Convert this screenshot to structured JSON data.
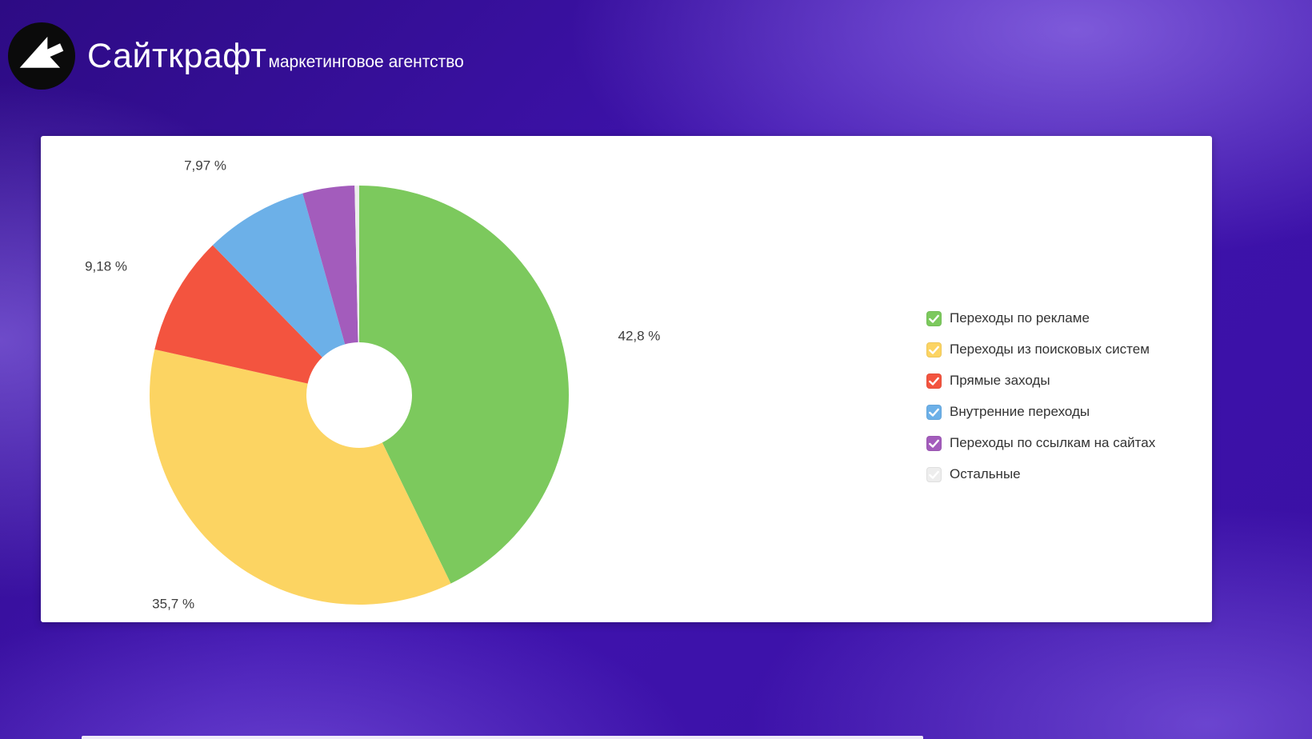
{
  "header": {
    "logo_title": "Сайткрафт",
    "logo_subtitle": "маркетинговое агентство"
  },
  "chart_data": {
    "type": "pie",
    "donut": true,
    "start_angle_deg": 0,
    "direction": "clockwise",
    "legend_position": "right",
    "title": "",
    "slices": [
      {
        "label": "Переходы по рекламе",
        "value": 42.8,
        "percent_label": "42,8 %",
        "color": "#7cc95d",
        "checked": true
      },
      {
        "label": "Переходы из поисковых систем",
        "value": 35.7,
        "percent_label": "35,7 %",
        "color": "#fcd462",
        "checked": true
      },
      {
        "label": "Прямые заходы",
        "value": 9.18,
        "percent_label": "9,18 %",
        "color": "#f3543f",
        "checked": true
      },
      {
        "label": "Внутренние переходы",
        "value": 7.97,
        "percent_label": "7,97 %",
        "color": "#6cb0e8",
        "checked": true
      },
      {
        "label": "Переходы по ссылкам на сайтах",
        "value": 4.0,
        "percent_label": "",
        "color": "#a35cbc",
        "checked": true
      },
      {
        "label": "Остальные",
        "value": 0.35,
        "percent_label": "",
        "color": "#ededed",
        "checked": false
      }
    ]
  }
}
